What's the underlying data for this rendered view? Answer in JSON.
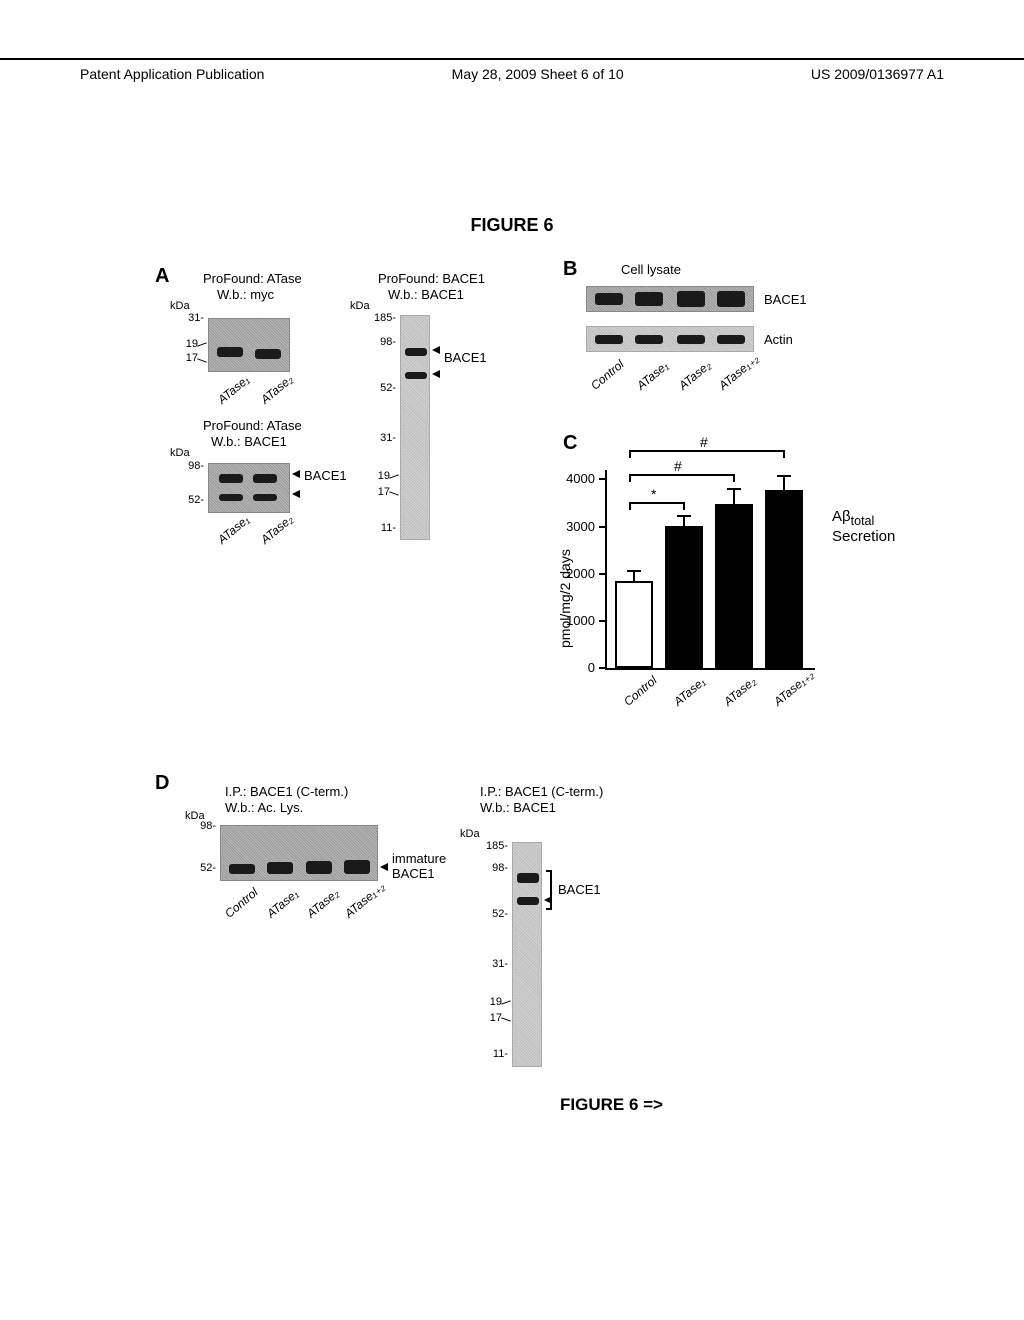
{
  "header": {
    "left": "Patent Application Publication",
    "mid": "May 28, 2009  Sheet 6 of 10",
    "right": "US 2009/0136977 A1"
  },
  "figure_title": "FIGURE 6",
  "figure_continue": "FIGURE 6 =>",
  "panels": {
    "A": "A",
    "B": "B",
    "C": "C",
    "D": "D"
  },
  "panelA": {
    "blot1": {
      "title1": "ProFound: ATase",
      "title2": "W.b.: myc",
      "kda": "kDa",
      "ticks": [
        "31-",
        "19",
        "17"
      ],
      "lanes": [
        "ATase₁",
        "ATase₂"
      ]
    },
    "blot2": {
      "title1": "ProFound: ATase",
      "title2": "W.b.: BACE1",
      "kda": "kDa",
      "ticks": [
        "98-",
        "52-"
      ],
      "lanes": [
        "ATase₁",
        "ATase₂"
      ],
      "right_label": "BACE1"
    },
    "blot3": {
      "title1": "ProFound: BACE1",
      "title2": "W.b.: BACE1",
      "kda": "kDa",
      "ticks": [
        "185-",
        "98-",
        "52-",
        "31-",
        "19",
        "17",
        "11-"
      ],
      "right_label": "BACE1"
    }
  },
  "panelB": {
    "title": "Cell lysate",
    "row1": "BACE1",
    "row2": "Actin",
    "lanes": [
      "Control",
      "ATase₁",
      "ATase₂",
      "ATase₁₊₂"
    ]
  },
  "panelC": {
    "chart": {
      "type": "bar",
      "ylabel": "pmol/mg/2 days",
      "right_label_top": "Aβ",
      "right_label_sub": "total",
      "right_label_line2": "Secretion",
      "ylim": [
        0,
        4200
      ],
      "yticks": [
        0,
        1000,
        2000,
        3000,
        4000
      ],
      "categories": [
        "Control",
        "ATase₁",
        "ATase₂",
        "ATase₁₊₂"
      ],
      "values": [
        1850,
        3020,
        3480,
        3780
      ],
      "errors": [
        220,
        230,
        340,
        320
      ],
      "bar_colors": [
        "#ffffff",
        "#000000",
        "#000000",
        "#000000"
      ],
      "sig": [
        {
          "from": 0,
          "to": 1,
          "label": "*"
        },
        {
          "from": 0,
          "to": 2,
          "label": "#"
        },
        {
          "from": 0,
          "to": 3,
          "label": "#"
        }
      ],
      "background_color": "#ffffff",
      "axis_color": "#000000"
    }
  },
  "panelD": {
    "blot1": {
      "title1": "I.P.: BACE1 (C-term.)",
      "title2": "W.b.: Ac. Lys.",
      "kda": "kDa",
      "ticks": [
        "98-",
        "52-"
      ],
      "right_label1": "immature",
      "right_label2": "BACE1",
      "lanes": [
        "Control",
        "ATase₁",
        "ATase₂",
        "ATase₁₊₂"
      ]
    },
    "blot2": {
      "title1": "I.P.: BACE1 (C-term.)",
      "title2": "W.b.: BACE1",
      "kda": "kDa",
      "ticks": [
        "185-",
        "98-",
        "52-",
        "31-",
        "19",
        "17",
        "11-"
      ],
      "right_label": "BACE1"
    }
  }
}
